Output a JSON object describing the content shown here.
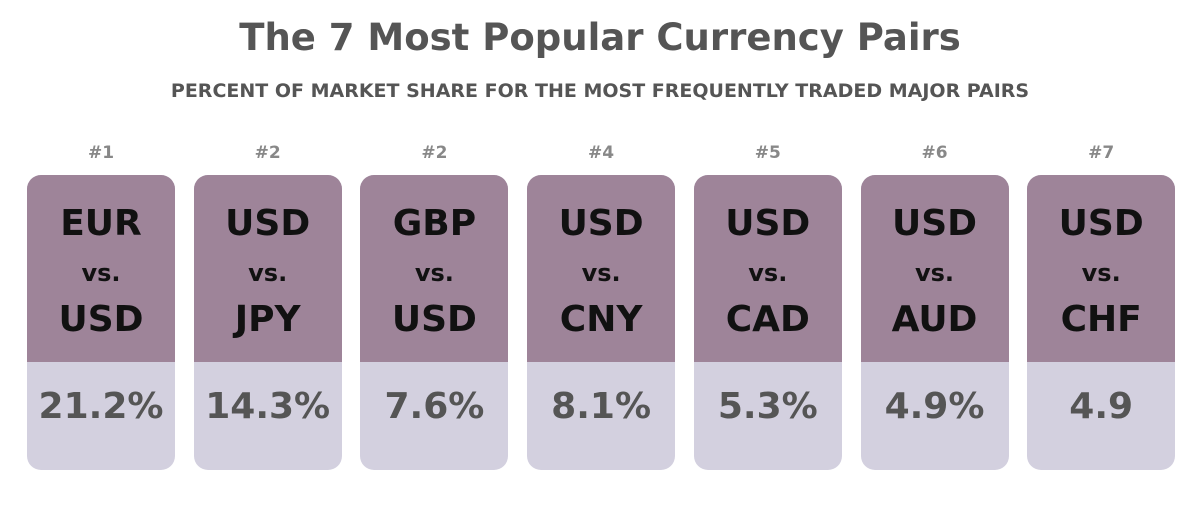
{
  "header": {
    "title": "The 7 Most Popular Currency Pairs",
    "subtitle": "PERCENT OF MARKET SHARE FOR THE MOST FREQUENTLY TRADED MAJOR PAIRS"
  },
  "cards": [
    {
      "rank": "#1",
      "base": "EUR",
      "vs": "vs.",
      "quote": "USD",
      "share": "21.2%"
    },
    {
      "rank": "#2",
      "base": "USD",
      "vs": "vs.",
      "quote": "JPY",
      "share": "14.3%"
    },
    {
      "rank": "#2",
      "base": "GBP",
      "vs": "vs.",
      "quote": "USD",
      "share": "7.6%"
    },
    {
      "rank": "#4",
      "base": "USD",
      "vs": "vs.",
      "quote": "CNY",
      "share": "8.1%"
    },
    {
      "rank": "#5",
      "base": "USD",
      "vs": "vs.",
      "quote": "CAD",
      "share": "5.3%"
    },
    {
      "rank": "#6",
      "base": "USD",
      "vs": "vs.",
      "quote": "AUD",
      "share": "4.9%"
    },
    {
      "rank": "#7",
      "base": "USD",
      "vs": "vs.",
      "quote": "CHF",
      "share": "4.9"
    }
  ]
}
